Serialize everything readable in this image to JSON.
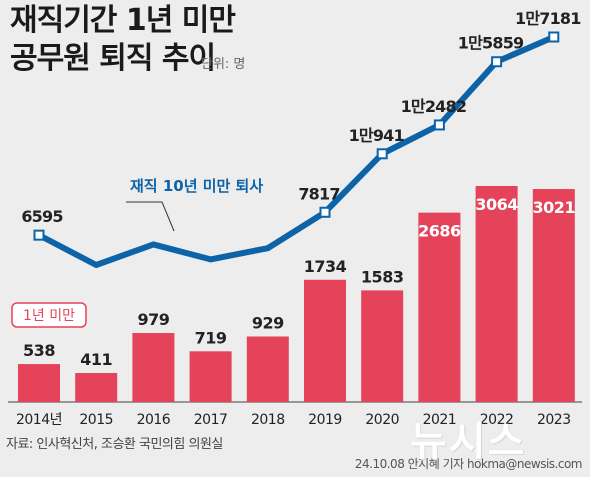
{
  "header": {
    "title_line1": "재직기간 1년 미만",
    "title_line2": "공무원 퇴직 추이",
    "unit": "단위: 명"
  },
  "footer": {
    "source": "자료: 인사혁신처, 조승환 국민의힘 의원실",
    "credit": "24.10.08 안지혜 기자 hokma@newsis.com",
    "watermark": "뉴시스"
  },
  "chart_data": {
    "type": "bar",
    "categories": [
      "2014년",
      "2015",
      "2016",
      "2017",
      "2018",
      "2019",
      "2020",
      "2021",
      "2022",
      "2023"
    ],
    "series": [
      {
        "name": "1년 미만",
        "type": "bar",
        "values": [
          538,
          411,
          979,
          719,
          929,
          1734,
          1583,
          2686,
          3064,
          3021
        ],
        "labels": [
          "538",
          "411",
          "979",
          "719",
          "929",
          "1734",
          "1583",
          "2686",
          "3064",
          "3021"
        ],
        "color": "#e5435a"
      },
      {
        "name": "재직 10년 미만 퇴사",
        "type": "line",
        "values": [
          6595,
          5000,
          6100,
          5300,
          5900,
          7817,
          10941,
          12482,
          15859,
          17181
        ],
        "labeled_points": [
          0,
          5,
          6,
          7,
          8,
          9
        ],
        "labels": [
          "6595",
          "",
          "",
          "",
          "",
          "7817",
          "1만941",
          "1만2482",
          "1만5859",
          "1만7181"
        ],
        "color": "#0c63a8"
      }
    ],
    "legend": "inline",
    "grid": false
  }
}
